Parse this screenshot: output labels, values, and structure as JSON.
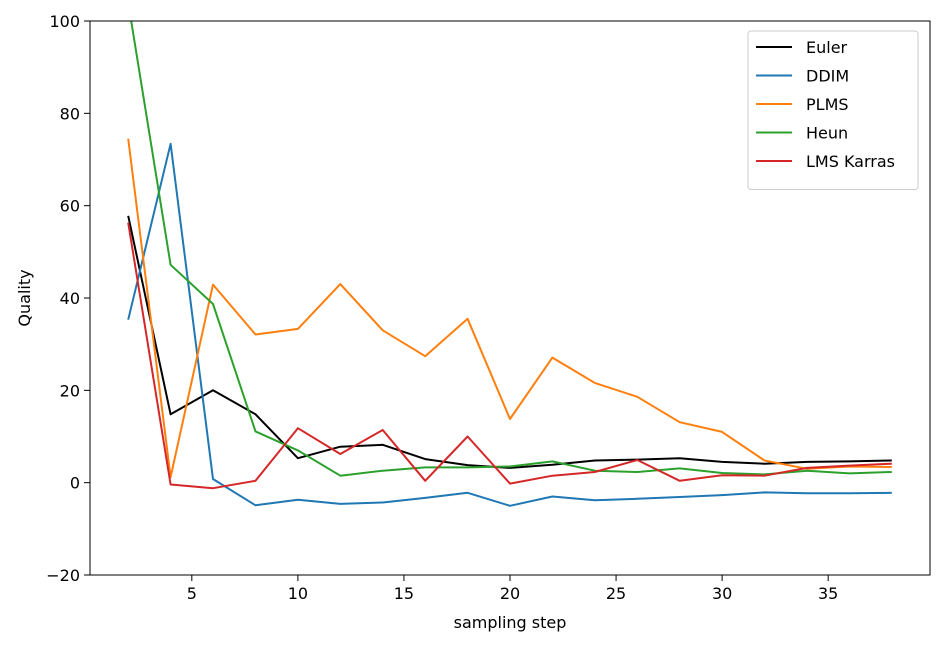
{
  "chart_data": {
    "type": "line",
    "title": "",
    "xlabel": "sampling step",
    "ylabel": "Quality",
    "xlim": [
      0.2,
      39.8
    ],
    "ylim": [
      -20,
      100
    ],
    "xticks": [
      5,
      10,
      15,
      20,
      25,
      30,
      35
    ],
    "yticks": [
      -20,
      0,
      20,
      40,
      60,
      80,
      100
    ],
    "grid": false,
    "legend": "top-right",
    "x": [
      2,
      4,
      6,
      8,
      10,
      12,
      14,
      16,
      18,
      20,
      22,
      24,
      26,
      28,
      30,
      32,
      34,
      36,
      38
    ],
    "series": [
      {
        "name": "Euler",
        "color": "#000000",
        "values": [
          57.8,
          14.8,
          20.0,
          14.8,
          5.3,
          7.8,
          8.2,
          5.1,
          3.8,
          3.2,
          3.9,
          4.8,
          5.0,
          5.3,
          4.5,
          4.1,
          4.5,
          4.6,
          4.8
        ]
      },
      {
        "name": "DDIM",
        "color": "#1f77b4",
        "values": [
          35.3,
          73.4,
          0.8,
          -4.9,
          -3.7,
          -4.6,
          -4.3,
          -3.3,
          -2.2,
          -5.0,
          -3.0,
          -3.8,
          -3.5,
          -3.1,
          -2.7,
          -2.1,
          -2.3,
          -2.3,
          -2.2
        ]
      },
      {
        "name": "PLMS",
        "color": "#ff7f0e",
        "values": [
          74.5,
          1.2,
          42.9,
          32.1,
          33.3,
          43.0,
          33.0,
          27.4,
          35.5,
          13.8,
          27.1,
          21.6,
          18.6,
          13.1,
          11.0,
          4.8,
          3.0,
          3.5,
          3.4
        ]
      },
      {
        "name": "Heun",
        "color": "#2ca02c",
        "values": [
          104.0,
          47.2,
          38.7,
          11.1,
          7.0,
          1.5,
          2.6,
          3.3,
          3.3,
          3.5,
          4.6,
          2.6,
          2.3,
          3.1,
          2.1,
          1.8,
          2.6,
          2.0,
          2.3
        ]
      },
      {
        "name": "LMS Karras",
        "color": "#d62728",
        "values": [
          56.3,
          -0.4,
          -1.2,
          0.4,
          11.8,
          6.2,
          11.4,
          0.4,
          10.0,
          -0.2,
          1.5,
          2.3,
          4.9,
          0.4,
          1.6,
          1.5,
          3.2,
          3.7,
          4.1
        ]
      }
    ]
  }
}
